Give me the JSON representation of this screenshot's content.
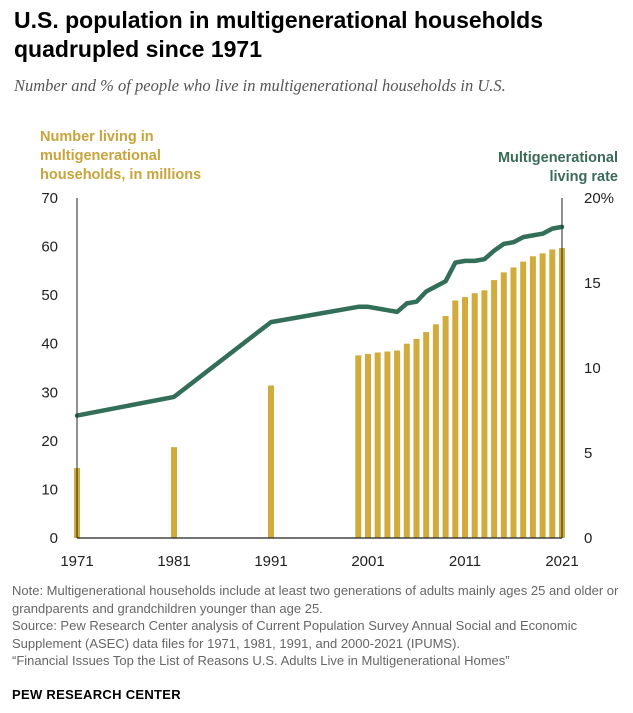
{
  "title": "U.S. population in multigenerational households quadrupled since 1971",
  "subtitle": "Number and % of people who live in multigenerational households in U.S.",
  "colors": {
    "bar": "#d1ab3c",
    "line": "#336e58",
    "left_label": "#c8a43a",
    "right_label": "#3a6b58",
    "axis": "#222222"
  },
  "chart_data": {
    "type": "bar+line",
    "title": "U.S. population in multigenerational households quadrupled since 1971",
    "left_axis": {
      "label_lines": [
        "Number living in",
        "multigenerational",
        "households, in millions"
      ],
      "ylim": [
        0,
        70
      ],
      "ticks": [
        "0",
        "10",
        "20",
        "30",
        "40",
        "50",
        "60",
        "70"
      ]
    },
    "right_axis": {
      "label_lines": [
        "Multigenerational",
        "living rate"
      ],
      "ylim": [
        0,
        20
      ],
      "ticks": [
        "0",
        "5",
        "10",
        "15",
        "20%"
      ]
    },
    "x_range": [
      1971,
      2021
    ],
    "x_ticks": [
      "1971",
      "1981",
      "1991",
      "2001",
      "2011",
      "2021"
    ],
    "series": [
      {
        "name": "Number living in multigenerational households, in millions",
        "type": "bar",
        "x": [
          1971,
          1981,
          1991,
          2000,
          2001,
          2002,
          2003,
          2004,
          2005,
          2006,
          2007,
          2008,
          2009,
          2010,
          2011,
          2012,
          2013,
          2014,
          2015,
          2016,
          2017,
          2018,
          2019,
          2020,
          2021
        ],
        "values": [
          14.4,
          18.7,
          31.4,
          37.6,
          37.9,
          38.2,
          38.4,
          38.6,
          40.0,
          41.0,
          42.4,
          44.0,
          45.7,
          48.9,
          49.6,
          50.4,
          51.0,
          53.1,
          54.7,
          55.7,
          56.9,
          58.0,
          58.6,
          59.4,
          59.7
        ]
      },
      {
        "name": "Multigenerational living rate",
        "type": "line",
        "x": [
          1971,
          1981,
          1991,
          2000,
          2001,
          2002,
          2003,
          2004,
          2005,
          2006,
          2007,
          2008,
          2009,
          2010,
          2011,
          2012,
          2013,
          2014,
          2015,
          2016,
          2017,
          2018,
          2019,
          2020,
          2021
        ],
        "values": [
          7.2,
          8.3,
          12.7,
          13.6,
          13.6,
          13.5,
          13.4,
          13.3,
          13.8,
          13.9,
          14.5,
          14.8,
          15.1,
          16.2,
          16.3,
          16.3,
          16.4,
          16.9,
          17.3,
          17.4,
          17.7,
          17.8,
          17.9,
          18.2,
          18.3
        ]
      }
    ]
  },
  "notes": {
    "note": "Note: Multigenerational households include at least two generations of adults mainly ages 25 and older or grandparents and grandchildren younger than age 25.",
    "source": "Source: Pew Research Center analysis of Current Population Survey Annual Social and Economic Supplement (ASEC) data files for 1971, 1981, 1991, and 2000-2021 (IPUMS).",
    "report": "“Financial Issues Top the List of Reasons U.S. Adults Live in Multigenerational Homes”"
  },
  "footer": "PEW RESEARCH CENTER"
}
